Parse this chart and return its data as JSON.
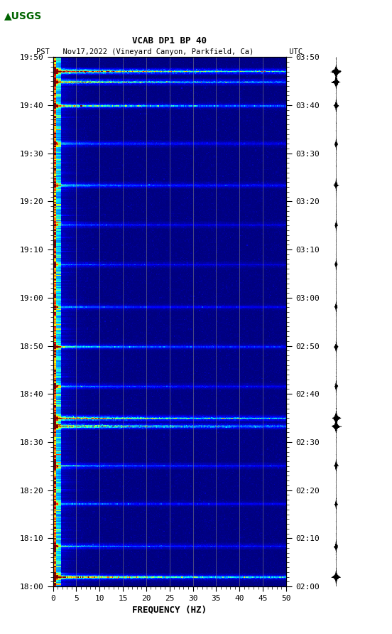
{
  "title_line1": "VCAB DP1 BP 40",
  "title_line2": "PST   Nov17,2022 (Vineyard Canyon, Parkfield, Ca)        UTC",
  "xlabel": "FREQUENCY (HZ)",
  "freq_min": 0,
  "freq_max": 50,
  "pst_yticks": [
    "18:00",
    "18:10",
    "18:20",
    "18:30",
    "18:40",
    "18:50",
    "19:00",
    "19:10",
    "19:20",
    "19:30",
    "19:40",
    "19:50"
  ],
  "utc_yticks": [
    "02:00",
    "02:10",
    "02:20",
    "02:30",
    "02:40",
    "02:50",
    "03:00",
    "03:10",
    "03:20",
    "03:30",
    "03:40",
    "03:50"
  ],
  "xticks": [
    0,
    5,
    10,
    15,
    20,
    25,
    30,
    35,
    40,
    45,
    50
  ],
  "vertical_lines_freq": [
    5,
    10,
    15,
    20,
    25,
    30,
    35,
    40,
    45
  ],
  "figsize": [
    5.52,
    8.92
  ],
  "dpi": 100,
  "event_times_frac": [
    0.018,
    0.075,
    0.155,
    0.228,
    0.302,
    0.318,
    0.378,
    0.452,
    0.528,
    0.608,
    0.682,
    0.758,
    0.835,
    0.908,
    0.952,
    0.972
  ],
  "intensities": [
    5.5,
    3.0,
    2.0,
    3.0,
    5.5,
    6.0,
    2.5,
    3.0,
    2.0,
    1.8,
    2.0,
    3.0,
    2.5,
    3.5,
    5.5,
    7.0
  ]
}
